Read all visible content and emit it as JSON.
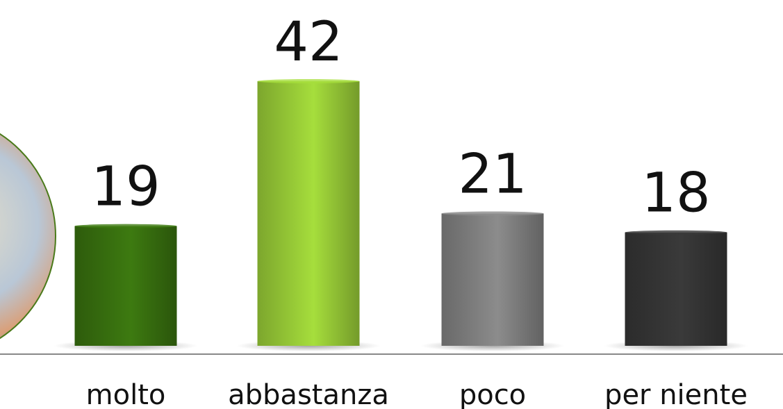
{
  "chart_data": {
    "type": "bar",
    "categories": [
      "molto",
      "abbastanza",
      "poco",
      "per niente"
    ],
    "values": [
      19,
      42,
      21,
      18
    ],
    "colors": [
      "#3d7a10",
      "#a6de3c",
      "#8c8c8c",
      "#3a3a3a"
    ]
  }
}
